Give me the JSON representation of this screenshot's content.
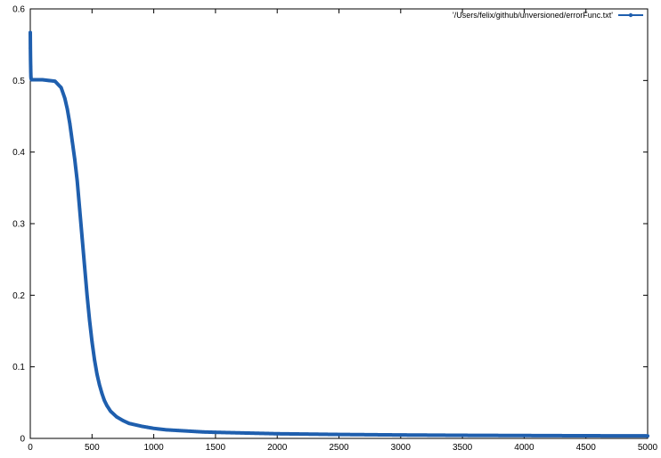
{
  "chart_data": {
    "type": "line",
    "title": "",
    "xlabel": "",
    "ylabel": "",
    "xlim": [
      0,
      5000
    ],
    "ylim": [
      0,
      0.6
    ],
    "x_ticks": [
      "0",
      "500",
      "1000",
      "1500",
      "2000",
      "2500",
      "3000",
      "3500",
      "4000",
      "4500",
      "5000"
    ],
    "y_ticks": [
      "0",
      "0.1",
      "0.2",
      "0.3",
      "0.4",
      "0.5",
      "0.6"
    ],
    "grid": false,
    "legend_position": "top-right",
    "series": [
      {
        "name": "'/Users/felix/github/unversioned/errorFunc.txt'",
        "color": "#1f5fae",
        "marker": "circle",
        "x": [
          0,
          1,
          2,
          3,
          4,
          5,
          6,
          8,
          10,
          15,
          20,
          30,
          50,
          80,
          100,
          150,
          200,
          250,
          280,
          300,
          320,
          340,
          360,
          380,
          400,
          420,
          440,
          460,
          480,
          500,
          520,
          540,
          560,
          580,
          600,
          620,
          650,
          700,
          750,
          800,
          900,
          1000,
          1100,
          1200,
          1300,
          1400,
          1500,
          1750,
          2000,
          2500,
          3000,
          3500,
          4000,
          4500,
          5000
        ],
        "y": [
          0.567,
          0.545,
          0.53,
          0.52,
          0.512,
          0.506,
          0.503,
          0.502,
          0.501,
          0.501,
          0.501,
          0.501,
          0.501,
          0.501,
          0.501,
          0.5,
          0.499,
          0.49,
          0.475,
          0.46,
          0.44,
          0.415,
          0.39,
          0.36,
          0.32,
          0.28,
          0.24,
          0.2,
          0.165,
          0.135,
          0.11,
          0.09,
          0.075,
          0.063,
          0.053,
          0.046,
          0.038,
          0.03,
          0.025,
          0.021,
          0.017,
          0.014,
          0.012,
          0.011,
          0.01,
          0.009,
          0.0085,
          0.0075,
          0.0065,
          0.0055,
          0.0048,
          0.0043,
          0.004,
          0.0037,
          0.0035
        ]
      }
    ]
  }
}
